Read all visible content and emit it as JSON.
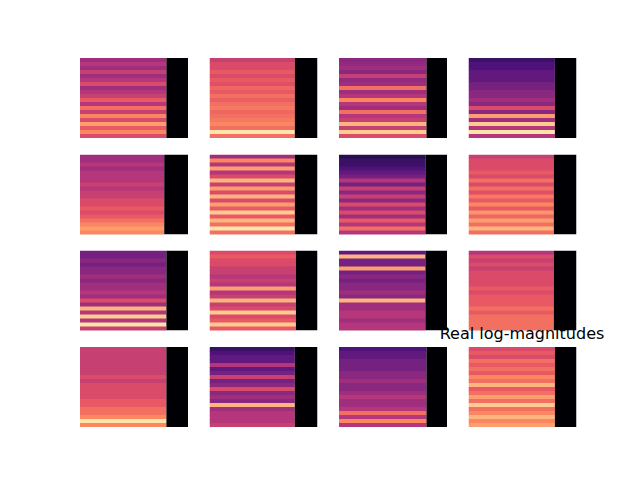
{
  "chart_data": {
    "type": "heatmap",
    "title": "Real log-magnitudes",
    "tick_labels": false,
    "zlim": [
      0,
      1
    ],
    "panels": [
      {
        "extent": 0.8,
        "rows": [
          0.45,
          0.5,
          0.45,
          0.55,
          0.45,
          0.5,
          0.6,
          0.45,
          0.5,
          0.55,
          0.65,
          0.5,
          0.7,
          0.55,
          0.75,
          0.6,
          0.8,
          0.65,
          0.75,
          0.6
        ]
      },
      {
        "extent": 0.79,
        "rows": [
          0.55,
          0.6,
          0.6,
          0.65,
          0.6,
          0.65,
          0.62,
          0.68,
          0.65,
          0.7,
          0.66,
          0.7,
          0.72,
          0.68,
          0.7,
          0.72,
          0.75,
          0.7,
          0.95,
          0.7
        ]
      },
      {
        "extent": 0.81,
        "rows": [
          0.4,
          0.42,
          0.45,
          0.4,
          0.55,
          0.42,
          0.45,
          0.7,
          0.45,
          0.5,
          0.75,
          0.5,
          0.45,
          0.7,
          0.5,
          0.55,
          0.85,
          0.55,
          0.9,
          0.6
        ]
      },
      {
        "extent": 0.8,
        "rows": [
          0.2,
          0.25,
          0.25,
          0.3,
          0.3,
          0.3,
          0.35,
          0.35,
          0.4,
          0.4,
          0.45,
          0.4,
          0.6,
          0.4,
          0.8,
          0.45,
          0.9,
          0.5,
          0.95,
          0.5
        ]
      },
      {
        "extent": 0.78,
        "rows": [
          0.45,
          0.45,
          0.5,
          0.45,
          0.5,
          0.5,
          0.5,
          0.55,
          0.5,
          0.55,
          0.55,
          0.6,
          0.6,
          0.65,
          0.6,
          0.65,
          0.7,
          0.75,
          0.8,
          0.75
        ]
      },
      {
        "extent": 0.79,
        "rows": [
          0.45,
          0.75,
          0.5,
          0.8,
          0.5,
          0.6,
          0.85,
          0.55,
          0.8,
          0.6,
          0.85,
          0.6,
          0.8,
          0.65,
          0.9,
          0.65,
          0.85,
          0.7,
          0.95,
          0.7
        ]
      },
      {
        "extent": 0.8,
        "rows": [
          0.15,
          0.2,
          0.2,
          0.25,
          0.3,
          0.35,
          0.5,
          0.35,
          0.55,
          0.4,
          0.55,
          0.4,
          0.6,
          0.45,
          0.6,
          0.45,
          0.65,
          0.5,
          0.7,
          0.5
        ]
      },
      {
        "extent": 0.79,
        "rows": [
          0.55,
          0.6,
          0.6,
          0.6,
          0.65,
          0.6,
          0.7,
          0.6,
          0.7,
          0.62,
          0.72,
          0.65,
          0.75,
          0.65,
          0.78,
          0.68,
          0.8,
          0.7,
          0.85,
          0.7
        ]
      },
      {
        "extent": 0.8,
        "rows": [
          0.35,
          0.35,
          0.4,
          0.35,
          0.4,
          0.4,
          0.45,
          0.4,
          0.45,
          0.45,
          0.5,
          0.45,
          0.6,
          0.45,
          0.85,
          0.5,
          0.9,
          0.5,
          0.95,
          0.55
        ]
      },
      {
        "extent": 0.8,
        "rows": [
          0.6,
          0.65,
          0.6,
          0.6,
          0.55,
          0.55,
          0.5,
          0.55,
          0.5,
          0.8,
          0.5,
          0.55,
          0.85,
          0.55,
          0.6,
          0.9,
          0.6,
          0.65,
          0.9,
          0.65
        ]
      },
      {
        "extent": 0.8,
        "rows": [
          0.3,
          0.85,
          0.35,
          0.35,
          0.8,
          0.35,
          0.4,
          0.35,
          0.4,
          0.4,
          0.45,
          0.4,
          0.85,
          0.45,
          0.45,
          0.5,
          0.5,
          0.45,
          0.5,
          0.5
        ]
      },
      {
        "extent": 0.79,
        "rows": [
          0.5,
          0.6,
          0.55,
          0.6,
          0.55,
          0.6,
          0.6,
          0.6,
          0.6,
          0.65,
          0.6,
          0.65,
          0.65,
          0.65,
          0.7,
          0.65,
          0.7,
          0.7,
          0.7,
          0.7
        ]
      },
      {
        "extent": 0.8,
        "rows": [
          0.55,
          0.55,
          0.55,
          0.55,
          0.55,
          0.55,
          0.55,
          0.6,
          0.55,
          0.6,
          0.6,
          0.6,
          0.6,
          0.65,
          0.65,
          0.7,
          0.7,
          0.75,
          0.95,
          0.75
        ]
      },
      {
        "extent": 0.79,
        "rows": [
          0.2,
          0.25,
          0.3,
          0.3,
          0.5,
          0.3,
          0.35,
          0.55,
          0.35,
          0.4,
          0.6,
          0.4,
          0.45,
          0.4,
          0.85,
          0.45,
          0.5,
          0.5,
          0.5,
          0.55
        ]
      },
      {
        "extent": 0.81,
        "rows": [
          0.25,
          0.3,
          0.3,
          0.35,
          0.35,
          0.35,
          0.4,
          0.4,
          0.45,
          0.4,
          0.4,
          0.45,
          0.5,
          0.45,
          0.45,
          0.5,
          0.7,
          0.5,
          0.75,
          0.5
        ]
      },
      {
        "extent": 0.8,
        "rows": [
          0.6,
          0.65,
          0.6,
          0.7,
          0.65,
          0.7,
          0.65,
          0.75,
          0.7,
          0.85,
          0.65,
          0.7,
          0.8,
          0.7,
          0.9,
          0.7,
          0.75,
          0.85,
          0.75,
          0.8
        ]
      }
    ]
  }
}
